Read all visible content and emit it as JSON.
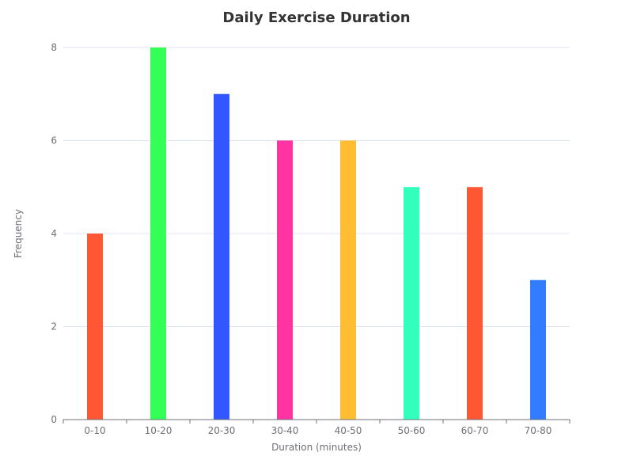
{
  "chart_data": {
    "type": "bar",
    "title": "Daily Exercise Duration",
    "xlabel": "Duration (minutes)",
    "ylabel": "Frequency",
    "categories": [
      "0-10",
      "10-20",
      "20-30",
      "30-40",
      "40-50",
      "50-60",
      "60-70",
      "70-80"
    ],
    "values": [
      4,
      8,
      7,
      6,
      6,
      5,
      5,
      3
    ],
    "colors": [
      "#ff5733",
      "#33ff57",
      "#3357ff",
      "#ff33a1",
      "#ffbd33",
      "#33ffbd",
      "#ff5733",
      "#337bff"
    ],
    "ylim": [
      0,
      8
    ],
    "yticks": [
      0,
      2,
      4,
      6,
      8
    ],
    "grid": true,
    "legend": "none"
  },
  "colors": {
    "grid": "#e0e6f1",
    "axis": "#6e7079",
    "title": "#333333"
  }
}
